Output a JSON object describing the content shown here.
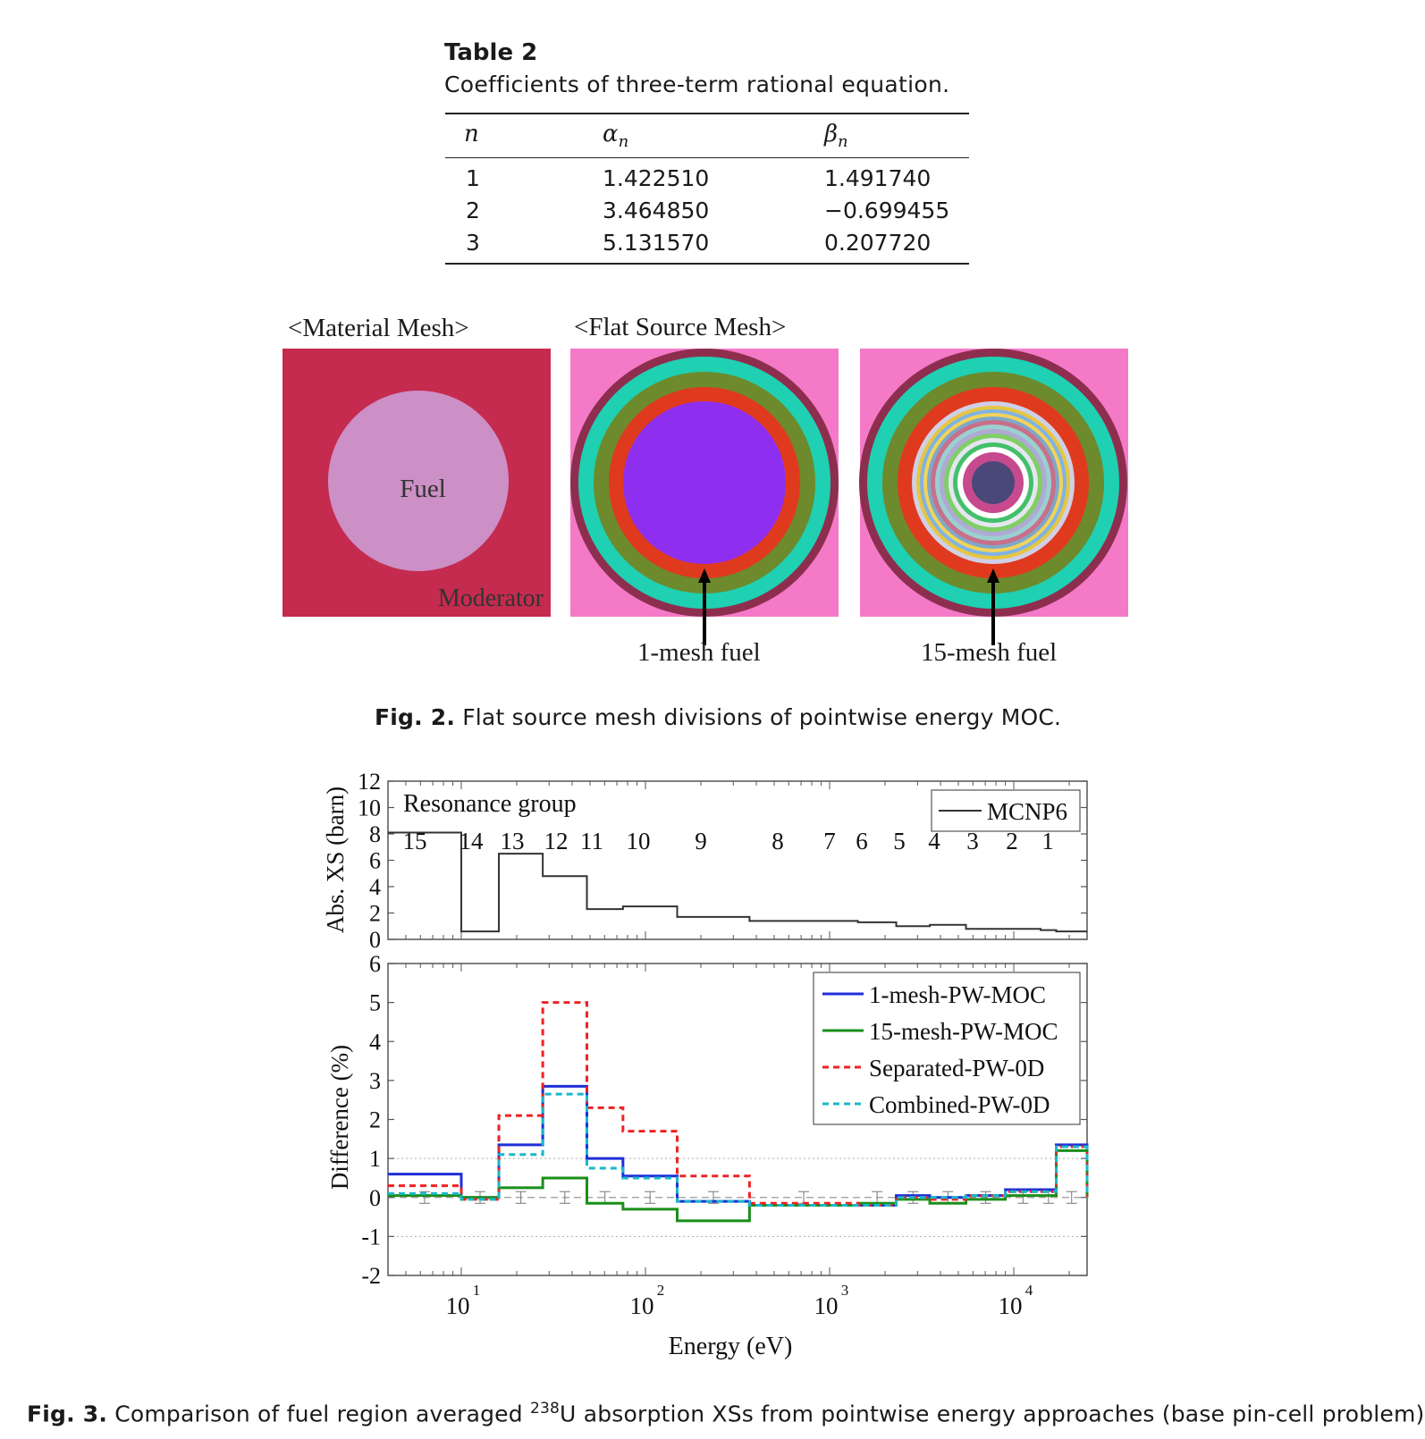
{
  "table": {
    "title": "Table 2",
    "caption": "Coefficients of three-term rational equation.",
    "headers": [
      "n",
      "an",
      "βn"
    ],
    "rows": [
      [
        "1",
        "1.422510",
        "1.491740"
      ],
      [
        "2",
        "3.464850",
        "−0.699455"
      ],
      [
        "3",
        "5.131570",
        "0.207720"
      ]
    ]
  },
  "fig2": {
    "label_material": "<Material Mesh>",
    "label_flat": "<Flat Source Mesh>",
    "fuel_label": "Fuel",
    "moderator_label": "Moderator",
    "label_1mesh": "1-mesh fuel",
    "label_15mesh": "15-mesh fuel",
    "caption_prefix": "Fig. 2.",
    "caption_text": "Flat source mesh divisions of pointwise energy MOC.",
    "colors": {
      "moderator": "#c42b4e",
      "fuel": "#cc8fc6",
      "background": "#f47ac8",
      "outer_ring": "#8e2e4f",
      "teal_ring": "#1fd0b2",
      "olive_ring": "#6d8a2c",
      "red_ring": "#e03a1e",
      "fuel_1mesh": "#8e2ff0",
      "center": "#4a4878"
    }
  },
  "fig3": {
    "caption_prefix": "Fig. 3.",
    "caption_text_before": "Comparison of fuel region averaged",
    "caption_sup": "238",
    "caption_text_after": "U absorption XSs from pointwise energy approaches (base pin-cell problem).",
    "top_panel": {
      "ylabel": "Abs. XS (barn)",
      "yticks": [
        "0",
        "2",
        "4",
        "6",
        "8",
        "10",
        "12"
      ],
      "annotation": "Resonance group",
      "group_numbers": [
        "15",
        "14",
        "13",
        "12",
        "11",
        "10",
        "9",
        "8",
        "7",
        "6",
        "5",
        "4",
        "3",
        "2",
        "1"
      ],
      "legend": "MCNP6"
    },
    "bottom_panel": {
      "ylabel": "Difference (%)",
      "yticks": [
        "-2",
        "-1",
        "0",
        "1",
        "2",
        "3",
        "4",
        "5",
        "6"
      ],
      "xlabel": "Energy (eV)",
      "xticks": [
        {
          "base": "10",
          "exp": "1"
        },
        {
          "base": "10",
          "exp": "2"
        },
        {
          "base": "10",
          "exp": "3"
        },
        {
          "base": "10",
          "exp": "4"
        }
      ],
      "legend": [
        "1-mesh-PW-MOC",
        "15-mesh-PW-MOC",
        "Separated-PW-0D",
        "Combined-PW-0D"
      ]
    },
    "chart_data": {
      "type": "line",
      "x_scale": "log",
      "xlim": [
        4,
        25000
      ],
      "group_edges_eV": [
        4,
        10,
        16,
        27.7,
        48.1,
        75.5,
        148.7,
        367.3,
        1425,
        2300,
        3500,
        5500,
        9000,
        14000,
        17000,
        25000
      ],
      "xs_values_barn": [
        8.1,
        0.6,
        6.5,
        4.8,
        2.3,
        2.5,
        1.7,
        1.4,
        1.3,
        1.0,
        1.1,
        0.8,
        0.8,
        0.7,
        0.6
      ],
      "ylim_top": [
        0,
        12
      ],
      "ylim_bottom": [
        -2,
        6
      ],
      "series": [
        {
          "name": "1-mesh-PW-MOC",
          "color": "#1f2fd8",
          "style": "solid",
          "values": [
            0.6,
            0.0,
            1.35,
            2.85,
            1.0,
            0.55,
            -0.1,
            -0.2,
            -0.2,
            0.05,
            0.0,
            0.05,
            0.2,
            0.2,
            1.35
          ]
        },
        {
          "name": "15-mesh-PW-MOC",
          "color": "#1a8f1a",
          "style": "solid",
          "values": [
            0.05,
            0.0,
            0.25,
            0.5,
            -0.15,
            -0.3,
            -0.6,
            -0.2,
            -0.15,
            -0.05,
            -0.15,
            -0.05,
            0.05,
            0.05,
            1.2
          ]
        },
        {
          "name": "Separated-PW-0D",
          "color": "#ee2222",
          "style": "dashed",
          "values": [
            0.3,
            -0.05,
            2.1,
            5.0,
            2.3,
            1.7,
            0.55,
            -0.15,
            -0.2,
            0.0,
            -0.05,
            0.05,
            0.15,
            0.15,
            1.3
          ]
        },
        {
          "name": "Combined-PW-0D",
          "color": "#19b8c8",
          "style": "dashed",
          "values": [
            0.1,
            -0.05,
            1.1,
            2.65,
            0.75,
            0.5,
            -0.1,
            -0.2,
            -0.2,
            0.0,
            0.0,
            0.05,
            0.15,
            0.15,
            1.3
          ]
        }
      ],
      "error_bar_band": [
        -0.15,
        0.15
      ],
      "grid": "dotted at -1 and 1; dashed at 0",
      "legend_placement": "top-right"
    }
  }
}
